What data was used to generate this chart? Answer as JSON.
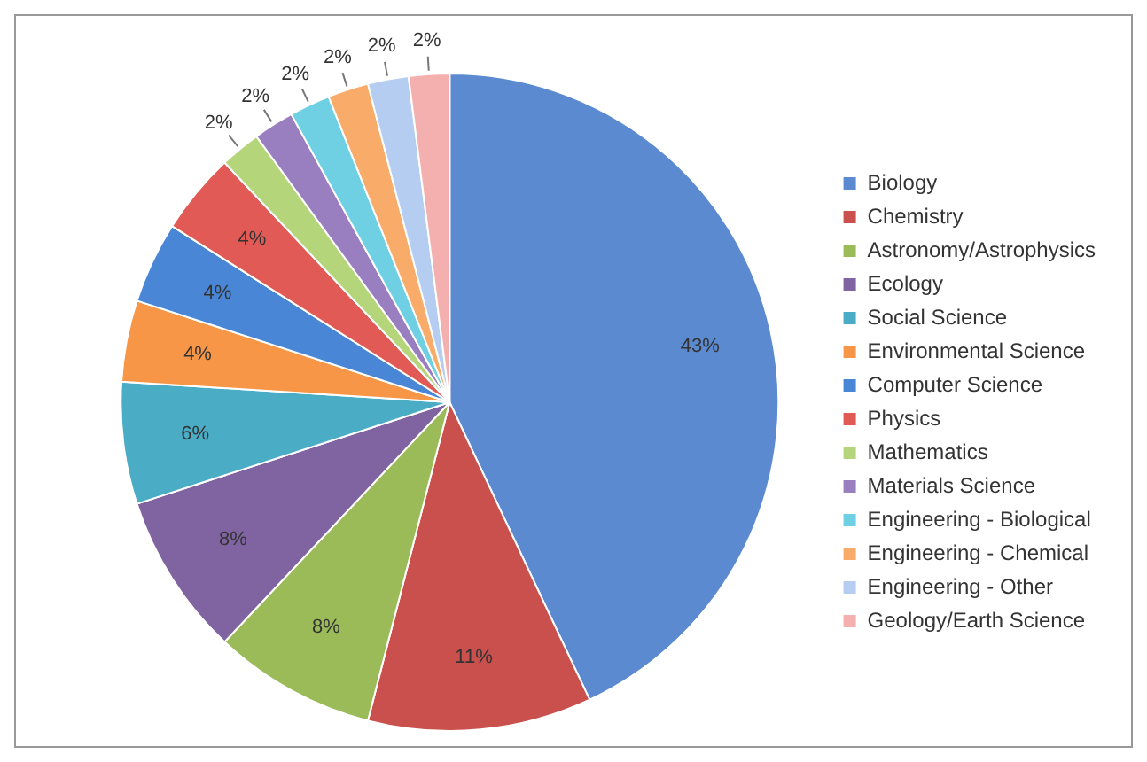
{
  "chart_data": {
    "type": "pie",
    "categories": [
      "Biology",
      "Chemistry",
      "Astronomy/Astrophysics",
      "Ecology",
      "Social Science",
      "Environmental Science",
      "Computer Science",
      "Physics",
      "Mathematics",
      "Materials Science",
      "Engineering - Biological",
      "Engineering - Chemical",
      "Engineering - Other",
      "Geology/Earth Science"
    ],
    "values": [
      43,
      11,
      8,
      8,
      6,
      4,
      4,
      4,
      2,
      2,
      2,
      2,
      2,
      2
    ],
    "value_labels": [
      "43%",
      "11%",
      "8%",
      "8%",
      "6%",
      "4%",
      "4%",
      "4%",
      "2%",
      "2%",
      "2%",
      "2%",
      "2%",
      "2%"
    ],
    "colors": [
      "#5b8ad0",
      "#c9504c",
      "#9bbb59",
      "#8064a2",
      "#4bacc6",
      "#f79646",
      "#4a86d6",
      "#e25a55",
      "#b5d57a",
      "#9a7fc0",
      "#6fd0e4",
      "#f9ab6a",
      "#b4cdf0",
      "#f4b0ae"
    ],
    "legend": "right"
  }
}
